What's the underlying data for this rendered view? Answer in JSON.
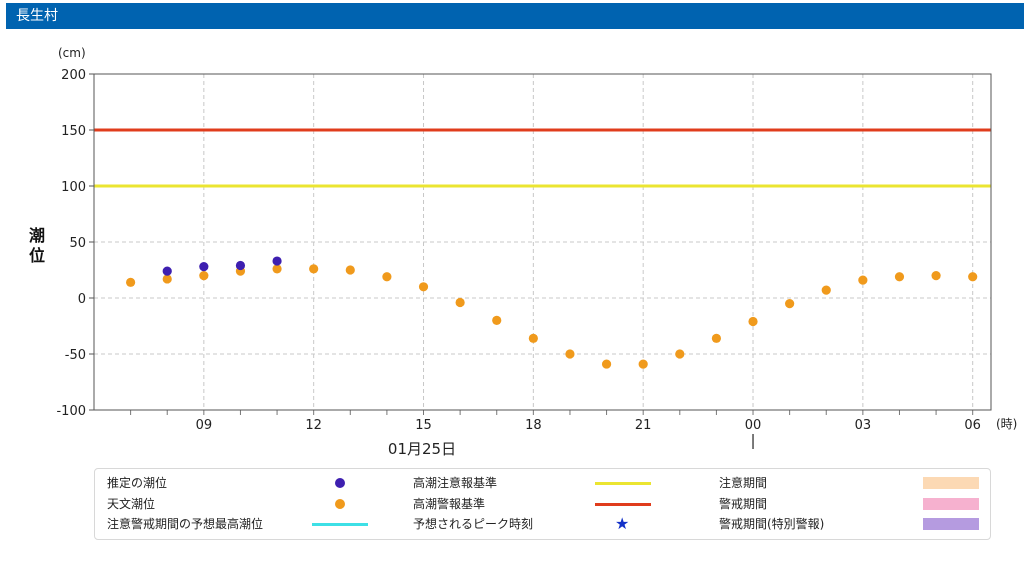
{
  "header": {
    "title": "長生村"
  },
  "chart_data": {
    "type": "scatter",
    "ylabel": "潮位",
    "yunit": "(cm)",
    "xunit": "(時)",
    "ylim": [
      -100,
      200
    ],
    "yticks": [
      "200",
      "150",
      "100",
      "50",
      "0",
      "-50",
      "-100"
    ],
    "xlim": [
      "2025-01-25 06:00",
      "2025-01-26 06:30"
    ],
    "xticks": [
      "09",
      "12",
      "15",
      "18",
      "21",
      "00",
      "03",
      "06"
    ],
    "date_label": "01月25日",
    "grid": true,
    "thresholds": [
      {
        "name": "高潮警報基準",
        "value": 150,
        "color": "#e03c1c"
      },
      {
        "name": "高潮注意報基準",
        "value": 100,
        "color": "#ebe531"
      }
    ],
    "series": [
      {
        "name": "天文潮位",
        "color": "#f09a1c",
        "x": [
          "2025-01-25 07:00",
          "2025-01-25 08:00",
          "2025-01-25 09:00",
          "2025-01-25 10:00",
          "2025-01-25 11:00",
          "2025-01-25 12:00",
          "2025-01-25 13:00",
          "2025-01-25 14:00",
          "2025-01-25 15:00",
          "2025-01-25 16:00",
          "2025-01-25 17:00",
          "2025-01-25 18:00",
          "2025-01-25 19:00",
          "2025-01-25 20:00",
          "2025-01-25 21:00",
          "2025-01-25 22:00",
          "2025-01-25 23:00",
          "2025-01-26 00:00",
          "2025-01-26 01:00",
          "2025-01-26 02:00",
          "2025-01-26 03:00",
          "2025-01-26 04:00",
          "2025-01-26 05:00",
          "2025-01-26 06:00"
        ],
        "values": [
          14,
          17,
          20,
          24,
          26,
          26,
          25,
          19,
          10,
          -4,
          -20,
          -36,
          -50,
          -59,
          -59,
          -50,
          -36,
          -21,
          -5,
          7,
          16,
          19,
          20,
          19
        ]
      },
      {
        "name": "推定の潮位",
        "color": "#3e1fb0",
        "x": [
          "2025-01-25 08:00",
          "2025-01-25 09:00",
          "2025-01-25 10:00",
          "2025-01-25 11:00"
        ],
        "values": [
          24,
          28,
          29,
          33
        ]
      }
    ]
  },
  "legend": {
    "items": [
      {
        "label": "推定の潮位",
        "type": "dot",
        "color": "#3e1fb0"
      },
      {
        "label": "高潮注意報基準",
        "type": "line",
        "color": "#ebe531"
      },
      {
        "label": "注意期間",
        "type": "box",
        "color": "#fcd9b4"
      },
      {
        "label": "天文潮位",
        "type": "dot",
        "color": "#f09a1c"
      },
      {
        "label": "高潮警報基準",
        "type": "line",
        "color": "#e03c1c"
      },
      {
        "label": "警戒期間",
        "type": "box",
        "color": "#f6b1cf"
      },
      {
        "label": "注意警戒期間の予想最高潮位",
        "type": "line",
        "color": "#3de0e6"
      },
      {
        "label": "予想されるピーク時刻",
        "type": "star",
        "color": "#1432c8",
        "symbol": "★"
      },
      {
        "label": "警戒期間(特別警報)",
        "type": "box",
        "color": "#b59be0"
      }
    ]
  }
}
